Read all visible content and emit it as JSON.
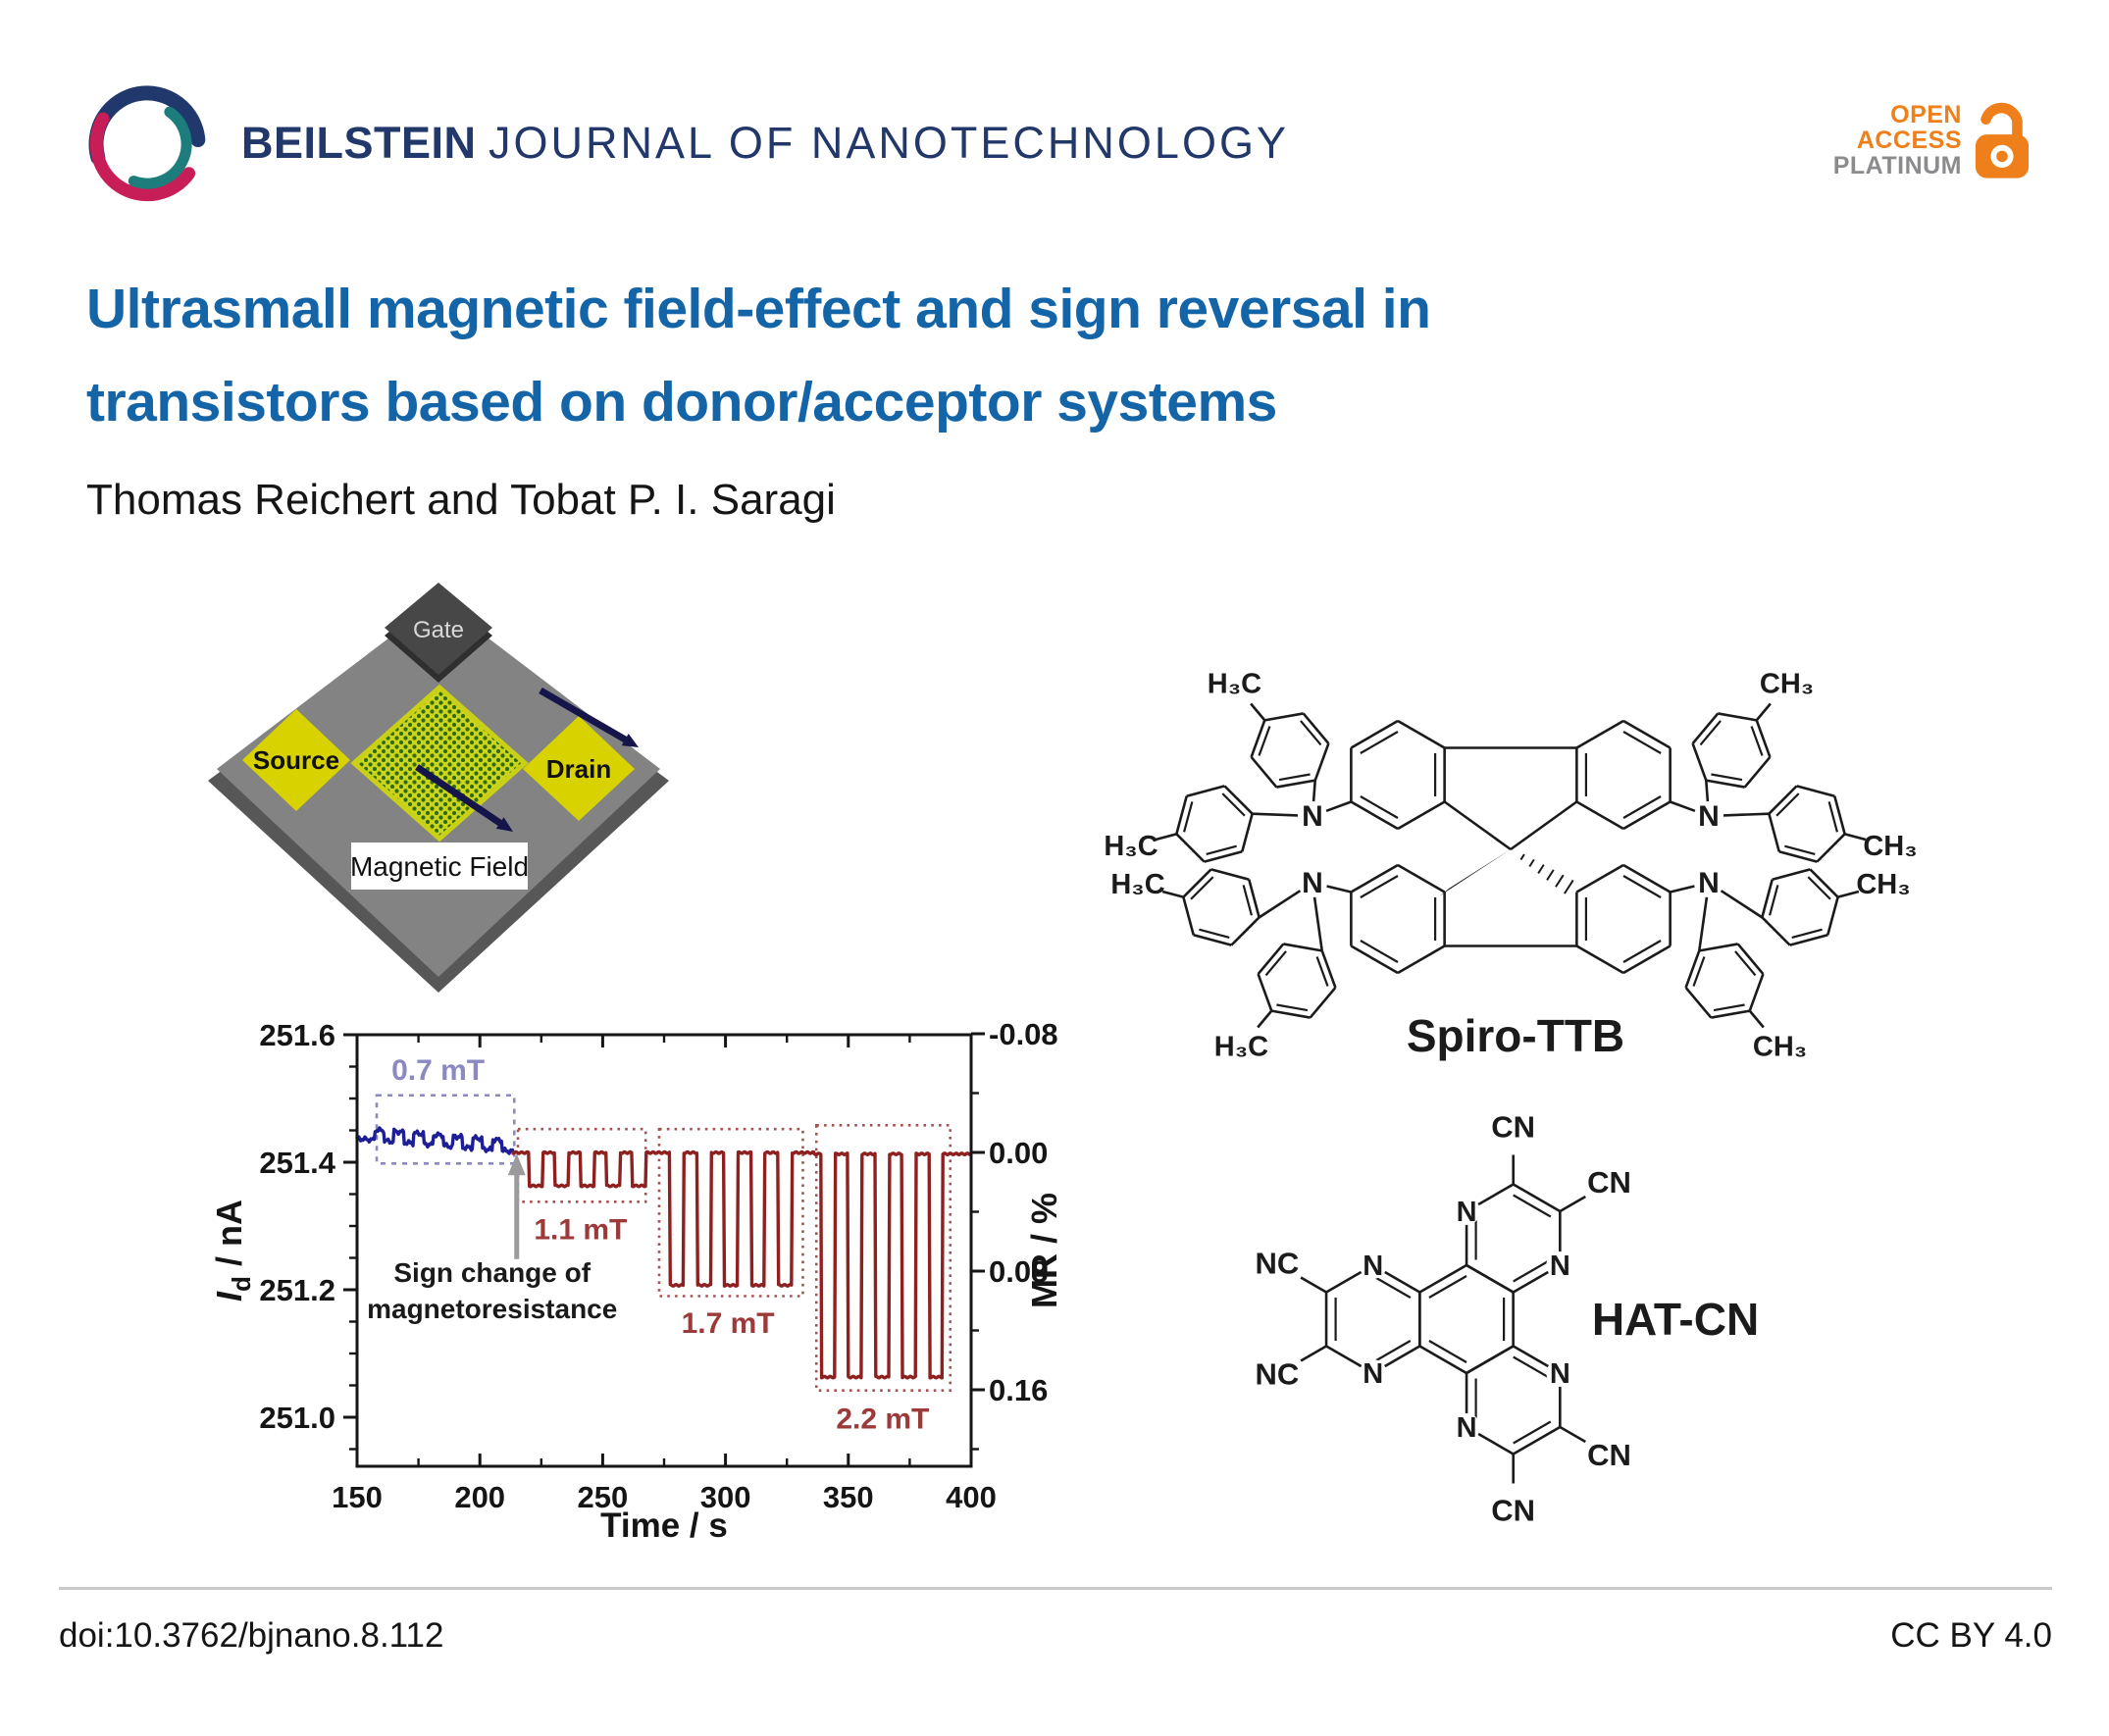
{
  "header": {
    "journal_name_bold": "BEILSTEIN",
    "journal_name_rest": "JOURNAL OF NANOTECHNOLOGY",
    "badge": {
      "line1": "OPEN",
      "line2": "ACCESS",
      "line3": "PLATINUM"
    }
  },
  "article": {
    "title_line1": "Ultrasmall magnetic field-effect and sign reversal in",
    "title_line2": "transistors based on donor/acceptor systems",
    "authors": "Thomas Reichert and Tobat P. I. Saragi"
  },
  "colors": {
    "title_blue": "#1464a8",
    "journal_navy": "#22386b",
    "badge_orange": "#ee7f1a",
    "badge_gray": "#8b8b8d",
    "line_blue": "#1e1e96",
    "line_red": "#8e2020",
    "box_blue": "#8a8ac0",
    "box_red": "#a85050",
    "label_red": "#9c3a3a"
  },
  "schematic": {
    "gate": "Gate",
    "source": "Source",
    "drain": "Drain",
    "magnetic_field": "Magnetic Field"
  },
  "chart_data": {
    "type": "line",
    "xlabel": "Time / s",
    "ylabel_left": {
      "symbol": "I",
      "subscript": "d",
      "rest": " / nA"
    },
    "ylabel_right": "MR / %",
    "x_range": [
      150,
      400
    ],
    "x_ticks": [
      150,
      200,
      250,
      300,
      350,
      400
    ],
    "x_minor_step": 25,
    "y_left_ticks": [
      251.0,
      251.2,
      251.4,
      251.6
    ],
    "y_left_minor_step": 0.05,
    "y_left_range": [
      250.92,
      251.6
    ],
    "y_right_ticks": [
      -0.08,
      0.0,
      0.08,
      0.16
    ],
    "y_right_minor_ticks": [
      -0.04,
      0.04,
      0.12,
      0.2
    ],
    "baseline_nA": 251.415,
    "grid": false,
    "series": [
      {
        "name": "0.7 mT",
        "color": "#1e1e96",
        "t_start": 150,
        "t_end": 213.5,
        "base_start": 251.437,
        "base_end": 251.417,
        "pulse_amplitude": 0.016,
        "pulse_starts": [
          157,
          165,
          173,
          181,
          189,
          197,
          205
        ],
        "pulse_duration": 4
      },
      {
        "name": "1.1 mT",
        "color": "#8e2020",
        "t_start": 213.5,
        "t_end": 274,
        "base": 251.415,
        "pulse_level": 251.363,
        "pulse_starts": [
          220,
          230.5,
          241,
          251.5,
          262
        ],
        "pulse_duration": 5.5
      },
      {
        "name": "1.7 mT",
        "color": "#8e2020",
        "t_start": 274,
        "t_end": 336,
        "base": 251.415,
        "pulse_level": 251.207,
        "pulse_starts": [
          277.5,
          288.5,
          299.5,
          310.5,
          321.5
        ],
        "pulse_duration": 5.5
      },
      {
        "name": "2.2 mT",
        "color": "#8e2020",
        "t_start": 336,
        "t_end": 400,
        "base": 251.413,
        "pulse_level": 251.063,
        "pulse_starts": [
          339,
          350,
          361,
          372,
          383
        ],
        "pulse_duration": 5.5
      }
    ],
    "region_boxes": [
      {
        "label": "0.7 mT",
        "t0": 158,
        "t1": 214,
        "v_top": 251.505,
        "v_bottom": 251.398,
        "color": "#8a8ac0",
        "label_color": "#8a8ac0",
        "style": "dashed",
        "label_t": 183,
        "label_v": 251.545
      },
      {
        "label": "1.1 mT",
        "t0": 215.5,
        "t1": 267.5,
        "v_top": 251.452,
        "v_bottom": 251.338,
        "color": "#a85050",
        "label_color": "#9c3a3a",
        "style": "dotted",
        "label_t": 241,
        "label_v": 251.295
      },
      {
        "label": "1.7 mT",
        "t0": 273,
        "t1": 331.5,
        "v_top": 251.452,
        "v_bottom": 251.19,
        "color": "#a85050",
        "label_color": "#9c3a3a",
        "style": "dotted",
        "label_t": 301,
        "label_v": 251.148
      },
      {
        "label": "2.2 mT",
        "t0": 337,
        "t1": 391.5,
        "v_top": 251.458,
        "v_bottom": 251.042,
        "color": "#a85050",
        "label_color": "#9c3a3a",
        "style": "dotted",
        "label_t": 364,
        "label_v": 250.998
      }
    ],
    "annotation": {
      "line1": "Sign change of",
      "line2": "magnetoresistance",
      "text_t": 205,
      "text_v": 251.212,
      "arrow_t": 215,
      "arrow_v_from": 251.248,
      "arrow_v_to": 251.398
    }
  },
  "molecules": {
    "spiro_ttb": {
      "name": "Spiro-TTB",
      "nitrogen": "N",
      "methyls": {
        "top_left": "H₃C",
        "top_right": "CH₃",
        "mid_left_upper": "H₃C",
        "mid_left_lower": "H₃C",
        "mid_right_upper": "CH₃",
        "mid_right_lower": "CH₃",
        "bottom_left": "H₃C",
        "bottom_right": "CH₃"
      }
    },
    "hat_cn": {
      "name": "HAT-CN",
      "nitrogen": "N",
      "cyano_top": "CN",
      "cyano_top_right": "CN",
      "cyano_left_upper": "NC",
      "cyano_left_lower": "NC",
      "cyano_bottom": "CN",
      "cyano_bottom_right": "CN"
    }
  },
  "footer": {
    "doi": "doi:10.3762/bjnano.8.112",
    "license": "CC BY 4.0"
  }
}
